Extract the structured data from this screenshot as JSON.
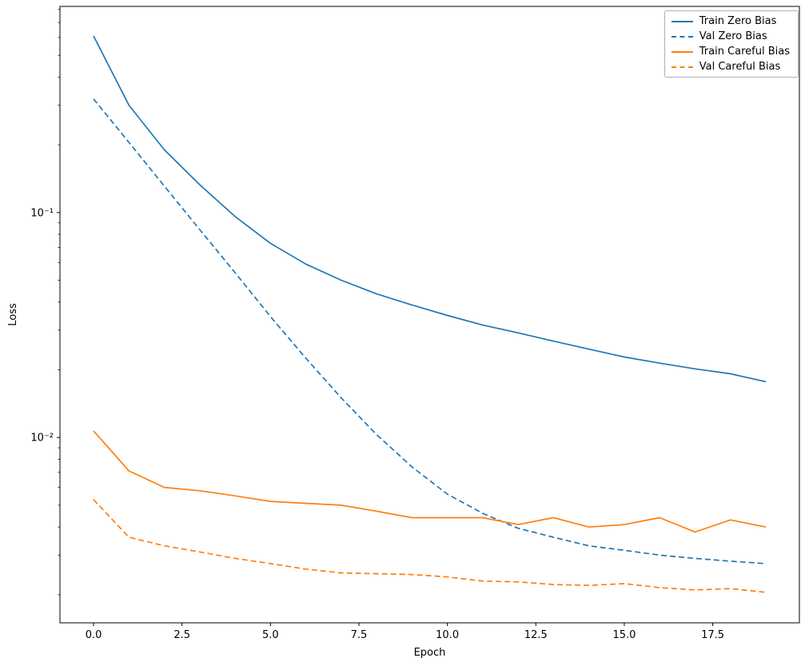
{
  "chart_data": {
    "type": "line",
    "title": "",
    "xlabel": "Epoch",
    "ylabel": "Loss",
    "yscale": "log",
    "grid": false,
    "legend_position": "upper right",
    "xlim": [
      -0.95,
      19.95
    ],
    "ylim": [
      0.0015,
      0.825
    ],
    "x_ticks": [
      0.0,
      2.5,
      5.0,
      7.5,
      10.0,
      12.5,
      15.0,
      17.5
    ],
    "y_ticks": [
      0.1,
      0.01
    ],
    "y_tick_labels": [
      "10⁻¹",
      "10⁻²"
    ],
    "x": [
      0,
      1,
      2,
      3,
      4,
      5,
      6,
      7,
      8,
      9,
      10,
      11,
      12,
      13,
      14,
      15,
      16,
      17,
      18,
      19
    ],
    "series": [
      {
        "name": "Train Zero Bias",
        "color": "#1f77b4",
        "style": "solid",
        "values": [
          0.61,
          0.3,
          0.19,
          0.133,
          0.096,
          0.073,
          0.059,
          0.05,
          0.0435,
          0.0388,
          0.0349,
          0.0316,
          0.0292,
          0.0268,
          0.0247,
          0.0228,
          0.0214,
          0.0202,
          0.0192,
          0.0177
        ]
      },
      {
        "name": "Val Zero Bias",
        "color": "#1f77b4",
        "style": "dashed",
        "values": [
          0.32,
          0.205,
          0.131,
          0.084,
          0.054,
          0.0345,
          0.0225,
          0.015,
          0.0103,
          0.0074,
          0.0056,
          0.0046,
          0.00395,
          0.0036,
          0.0033,
          0.00315,
          0.003,
          0.0029,
          0.00282,
          0.00275
        ]
      },
      {
        "name": "Train Careful Bias",
        "color": "#ff7f0e",
        "style": "solid",
        "values": [
          0.0107,
          0.0071,
          0.006,
          0.0058,
          0.0055,
          0.0052,
          0.0051,
          0.005,
          0.0047,
          0.0044,
          0.0044,
          0.0044,
          0.0041,
          0.0044,
          0.004,
          0.0041,
          0.0044,
          0.0038,
          0.0043,
          0.004
        ]
      },
      {
        "name": "Val Careful Bias",
        "color": "#ff7f0e",
        "style": "dashed",
        "values": [
          0.0053,
          0.0036,
          0.0033,
          0.0031,
          0.0029,
          0.00275,
          0.0026,
          0.0025,
          0.00248,
          0.00246,
          0.0024,
          0.0023,
          0.00228,
          0.00222,
          0.0022,
          0.00224,
          0.00215,
          0.0021,
          0.00213,
          0.00205
        ]
      }
    ]
  }
}
